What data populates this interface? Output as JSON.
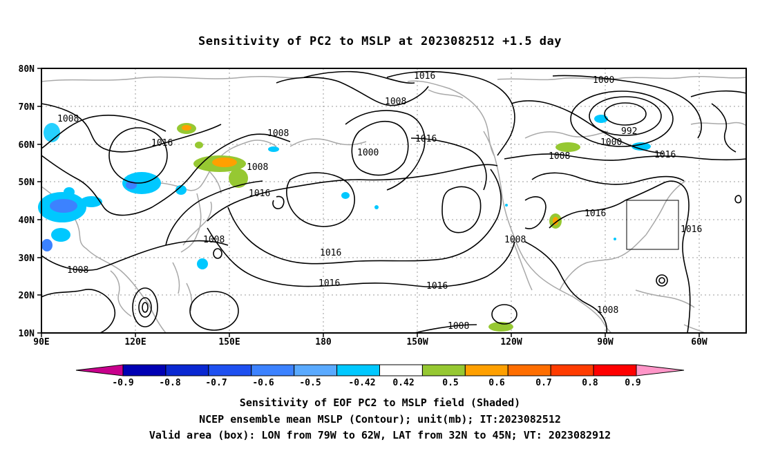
{
  "title": "Sensitivity of PC2 to MSLP at 2023082512 +1.5 day",
  "map": {
    "lat_labels": [
      "80N",
      "70N",
      "60N",
      "50N",
      "40N",
      "30N",
      "20N",
      "10N"
    ],
    "lon_labels": [
      "90E",
      "120E",
      "150E",
      "180",
      "150W",
      "120W",
      "90W",
      "60W"
    ],
    "contour_labels": [
      {
        "text": "1016"
      },
      {
        "text": "1008"
      },
      {
        "text": "1008"
      },
      {
        "text": "1016"
      },
      {
        "text": "1008"
      },
      {
        "text": "1008"
      },
      {
        "text": "1016"
      },
      {
        "text": "1000"
      },
      {
        "text": "1016"
      },
      {
        "text": "1000"
      },
      {
        "text": "992"
      },
      {
        "text": "1000"
      },
      {
        "text": "1008"
      },
      {
        "text": "1016"
      },
      {
        "text": "1016"
      },
      {
        "text": "1016"
      },
      {
        "text": "1008"
      },
      {
        "text": "1016"
      },
      {
        "text": "1016"
      },
      {
        "text": "1016"
      },
      {
        "text": "1008"
      },
      {
        "text": "1008"
      },
      {
        "text": "1008"
      },
      {
        "text": "1008"
      }
    ],
    "valid_box": {
      "lon_from": "79W",
      "lon_to": "62W",
      "lat_from": "32N",
      "lat_to": "45N"
    }
  },
  "colorbar": {
    "labels": [
      "-0.9",
      "-0.8",
      "-0.7",
      "-0.6",
      "-0.5",
      "-0.42",
      "0.42",
      "0.5",
      "0.6",
      "0.7",
      "0.8",
      "0.9"
    ],
    "colors": [
      "#c8008c",
      "#0000b4",
      "#0a28d2",
      "#1e50f0",
      "#3c82ff",
      "#5aaaff",
      "#00c8ff",
      "#ffffff",
      "#96c832",
      "#ffa000",
      "#ff6e00",
      "#ff3c00",
      "#ff0000",
      "#ff96c8"
    ]
  },
  "footer": {
    "line1": "Sensitivity of EOF PC2 to MSLP field (Shaded)",
    "line2": "NCEP ensemble mean MSLP (Contour); unit(mb); IT:2023082512",
    "line3": "Valid area (box): LON from 79W to 62W, LAT from 32N to 45N; VT: 2023082912"
  }
}
